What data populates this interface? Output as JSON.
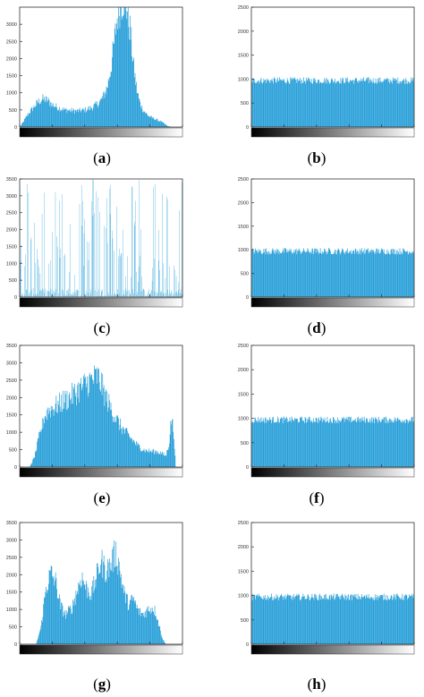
{
  "panels": [
    {
      "id": "a",
      "caption": "a",
      "ylim": [
        0,
        3500
      ],
      "ticks": [
        0,
        500,
        1000,
        1500,
        2000,
        2500,
        3000
      ],
      "clipped": true,
      "profile": [
        [
          0,
          0
        ],
        [
          0.02,
          150
        ],
        [
          0.05,
          380
        ],
        [
          0.08,
          550
        ],
        [
          0.11,
          720
        ],
        [
          0.14,
          820
        ],
        [
          0.17,
          780
        ],
        [
          0.2,
          650
        ],
        [
          0.24,
          560
        ],
        [
          0.28,
          500
        ],
        [
          0.32,
          480
        ],
        [
          0.36,
          470
        ],
        [
          0.4,
          500
        ],
        [
          0.44,
          560
        ],
        [
          0.48,
          680
        ],
        [
          0.5,
          780
        ],
        [
          0.52,
          950
        ],
        [
          0.54,
          1200
        ],
        [
          0.56,
          1700
        ],
        [
          0.58,
          2400
        ],
        [
          0.6,
          3200
        ],
        [
          0.62,
          3600
        ],
        [
          0.64,
          3800
        ],
        [
          0.66,
          3500
        ],
        [
          0.68,
          2800
        ],
        [
          0.7,
          1800
        ],
        [
          0.72,
          1100
        ],
        [
          0.74,
          700
        ],
        [
          0.76,
          500
        ],
        [
          0.78,
          380
        ],
        [
          0.8,
          300
        ],
        [
          0.82,
          260
        ],
        [
          0.85,
          200
        ],
        [
          0.87,
          160
        ],
        [
          0.89,
          100
        ],
        [
          0.91,
          30
        ],
        [
          0.94,
          0
        ],
        [
          1,
          0
        ]
      ]
    },
    {
      "id": "b",
      "caption": "b",
      "ylim": [
        0,
        2500
      ],
      "ticks": [
        0,
        500,
        1000,
        1500,
        2000,
        2500
      ],
      "clipped": false,
      "profile": [
        [
          0,
          1000
        ],
        [
          1,
          1000
        ]
      ]
    },
    {
      "id": "c",
      "caption": "c",
      "ylim": [
        0,
        3500
      ],
      "ticks": [
        0,
        500,
        1000,
        1500,
        2000,
        2500,
        3000,
        3500
      ],
      "clipped": true,
      "profile": [
        [
          0,
          600
        ],
        [
          0.2,
          700
        ],
        [
          0.4,
          800
        ],
        [
          0.6,
          600
        ],
        [
          0.8,
          400
        ],
        [
          1,
          300
        ]
      ]
    },
    {
      "id": "d",
      "caption": "d",
      "ylim": [
        0,
        2500
      ],
      "ticks": [
        0,
        500,
        1000,
        1500,
        2000,
        2500
      ],
      "clipped": false,
      "profile": [
        [
          0,
          1000
        ],
        [
          1,
          1000
        ]
      ]
    },
    {
      "id": "e",
      "caption": "e",
      "ylim": [
        0,
        3500
      ],
      "ticks": [
        0,
        500,
        1000,
        1500,
        2000,
        2500,
        3000,
        3500
      ],
      "clipped": false,
      "profile": [
        [
          0,
          0
        ],
        [
          0.06,
          0
        ],
        [
          0.09,
          300
        ],
        [
          0.12,
          900
        ],
        [
          0.15,
          1450
        ],
        [
          0.18,
          1650
        ],
        [
          0.22,
          1750
        ],
        [
          0.27,
          1900
        ],
        [
          0.32,
          2050
        ],
        [
          0.37,
          2250
        ],
        [
          0.42,
          2450
        ],
        [
          0.46,
          2550
        ],
        [
          0.48,
          2600
        ],
        [
          0.5,
          2400
        ],
        [
          0.53,
          2000
        ],
        [
          0.57,
          1600
        ],
        [
          0.61,
          1250
        ],
        [
          0.65,
          1000
        ],
        [
          0.69,
          800
        ],
        [
          0.73,
          600
        ],
        [
          0.77,
          480
        ],
        [
          0.81,
          450
        ],
        [
          0.85,
          440
        ],
        [
          0.88,
          380
        ],
        [
          0.9,
          320
        ],
        [
          0.92,
          700
        ],
        [
          0.935,
          1450
        ],
        [
          0.95,
          900
        ],
        [
          0.96,
          0
        ],
        [
          1,
          0
        ]
      ]
    },
    {
      "id": "f",
      "caption": "f",
      "ylim": [
        0,
        2500
      ],
      "ticks": [
        0,
        500,
        1000,
        1500,
        2000,
        2500
      ],
      "clipped": false,
      "profile": [
        [
          0,
          1000
        ],
        [
          1,
          1000
        ]
      ]
    },
    {
      "id": "g",
      "caption": "g",
      "ylim": [
        0,
        3500
      ],
      "ticks": [
        0,
        500,
        1000,
        1500,
        2000,
        2500,
        3000,
        3500
      ],
      "clipped": false,
      "profile": [
        [
          0,
          0
        ],
        [
          0.1,
          0
        ],
        [
          0.13,
          500
        ],
        [
          0.16,
          1600
        ],
        [
          0.19,
          2050
        ],
        [
          0.22,
          1800
        ],
        [
          0.25,
          1100
        ],
        [
          0.28,
          850
        ],
        [
          0.32,
          1050
        ],
        [
          0.35,
          1500
        ],
        [
          0.38,
          1950
        ],
        [
          0.41,
          1600
        ],
        [
          0.44,
          1450
        ],
        [
          0.47,
          1900
        ],
        [
          0.5,
          2400
        ],
        [
          0.53,
          2100
        ],
        [
          0.56,
          2300
        ],
        [
          0.59,
          2650
        ],
        [
          0.61,
          2300
        ],
        [
          0.64,
          1500
        ],
        [
          0.67,
          1150
        ],
        [
          0.7,
          1300
        ],
        [
          0.73,
          950
        ],
        [
          0.76,
          850
        ],
        [
          0.79,
          1000
        ],
        [
          0.82,
          1050
        ],
        [
          0.84,
          900
        ],
        [
          0.86,
          500
        ],
        [
          0.88,
          150
        ],
        [
          0.9,
          0
        ],
        [
          1,
          0
        ]
      ]
    },
    {
      "id": "h",
      "caption": "h",
      "ylim": [
        0,
        2500
      ],
      "ticks": [
        0,
        500,
        1000,
        1500,
        2000,
        2500
      ],
      "clipped": false,
      "profile": [
        [
          0,
          1000
        ],
        [
          1,
          1000
        ]
      ]
    }
  ],
  "colors": {
    "bar": "#1f9bd7",
    "axis": "#333333",
    "tick_text": "#333333"
  }
}
